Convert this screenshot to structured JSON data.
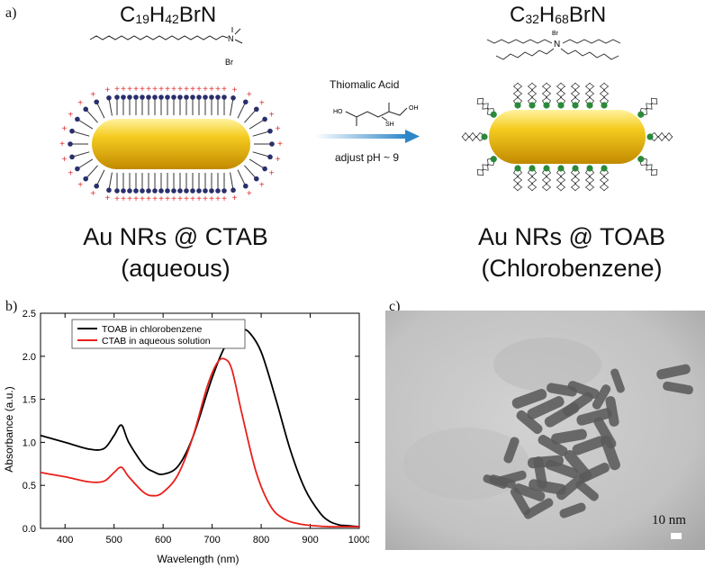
{
  "panel_a": {
    "label": "a)",
    "left": {
      "formula": {
        "base1": "C",
        "sub1": "19",
        "base2": "H",
        "sub2": "42",
        "tail": "BrN"
      },
      "bromide": "Br",
      "title_line1": "Au NRs @ CTAB",
      "title_line2": "(aqueous)"
    },
    "arrow": {
      "reagent": "Thiomalic Acid",
      "condition": "adjust pH ~ 9",
      "mol_ho": "HO",
      "mol_oh": "OH",
      "mol_sh": "SH"
    },
    "right": {
      "formula": {
        "base1": "C",
        "sub1": "32",
        "base2": "H",
        "sub2": "68",
        "tail": "BrN"
      },
      "bromide": "Br",
      "title_line1": "Au NRs @ TOAB",
      "title_line2": "(Chlorobenzene)"
    },
    "colors": {
      "gold": "#f2c21b",
      "ctab_head": "#2a2f6b",
      "toab_head": "#2a8a3a",
      "charge": "#e03030"
    }
  },
  "panel_b": {
    "label": "b)",
    "chart_data": {
      "type": "line",
      "xlabel": "Wavelength (nm)",
      "ylabel": "Absorbance (a.u.)",
      "xlim": [
        350,
        1000
      ],
      "ylim": [
        0,
        2.5
      ],
      "xticks": [
        400,
        500,
        600,
        700,
        800,
        900,
        1000
      ],
      "yticks": [
        0.0,
        0.5,
        1.0,
        1.5,
        2.0,
        2.5
      ],
      "ytick_labels": [
        "0.0",
        "0.5",
        "1.0",
        "1.5",
        "2.0",
        "2.5"
      ],
      "legend_position": "top-left",
      "series": [
        {
          "name": "TOAB in chlorobenzene",
          "color": "#000000",
          "x": [
            350,
            400,
            450,
            480,
            500,
            515,
            530,
            560,
            580,
            600,
            630,
            660,
            700,
            730,
            760,
            775,
            800,
            830,
            860,
            890,
            920,
            940,
            960,
            980,
            1000
          ],
          "y": [
            1.08,
            1.0,
            0.92,
            0.93,
            1.08,
            1.2,
            1.0,
            0.74,
            0.66,
            0.63,
            0.72,
            1.05,
            1.75,
            2.15,
            2.29,
            2.28,
            2.05,
            1.5,
            0.9,
            0.45,
            0.18,
            0.08,
            0.04,
            0.03,
            0.02
          ]
        },
        {
          "name": "CTAB in aqueous solution",
          "color": "#e8201c",
          "x": [
            350,
            400,
            450,
            480,
            500,
            515,
            530,
            560,
            580,
            600,
            630,
            660,
            690,
            710,
            725,
            740,
            760,
            790,
            820,
            850,
            880,
            910,
            940,
            970,
            1000
          ],
          "y": [
            0.65,
            0.6,
            0.54,
            0.55,
            0.65,
            0.71,
            0.6,
            0.42,
            0.38,
            0.42,
            0.62,
            1.05,
            1.65,
            1.92,
            1.97,
            1.85,
            1.35,
            0.65,
            0.25,
            0.1,
            0.05,
            0.03,
            0.02,
            0.02,
            0.02
          ]
        }
      ]
    }
  },
  "panel_c": {
    "label": "c)",
    "scale_bar": "10 nm"
  }
}
